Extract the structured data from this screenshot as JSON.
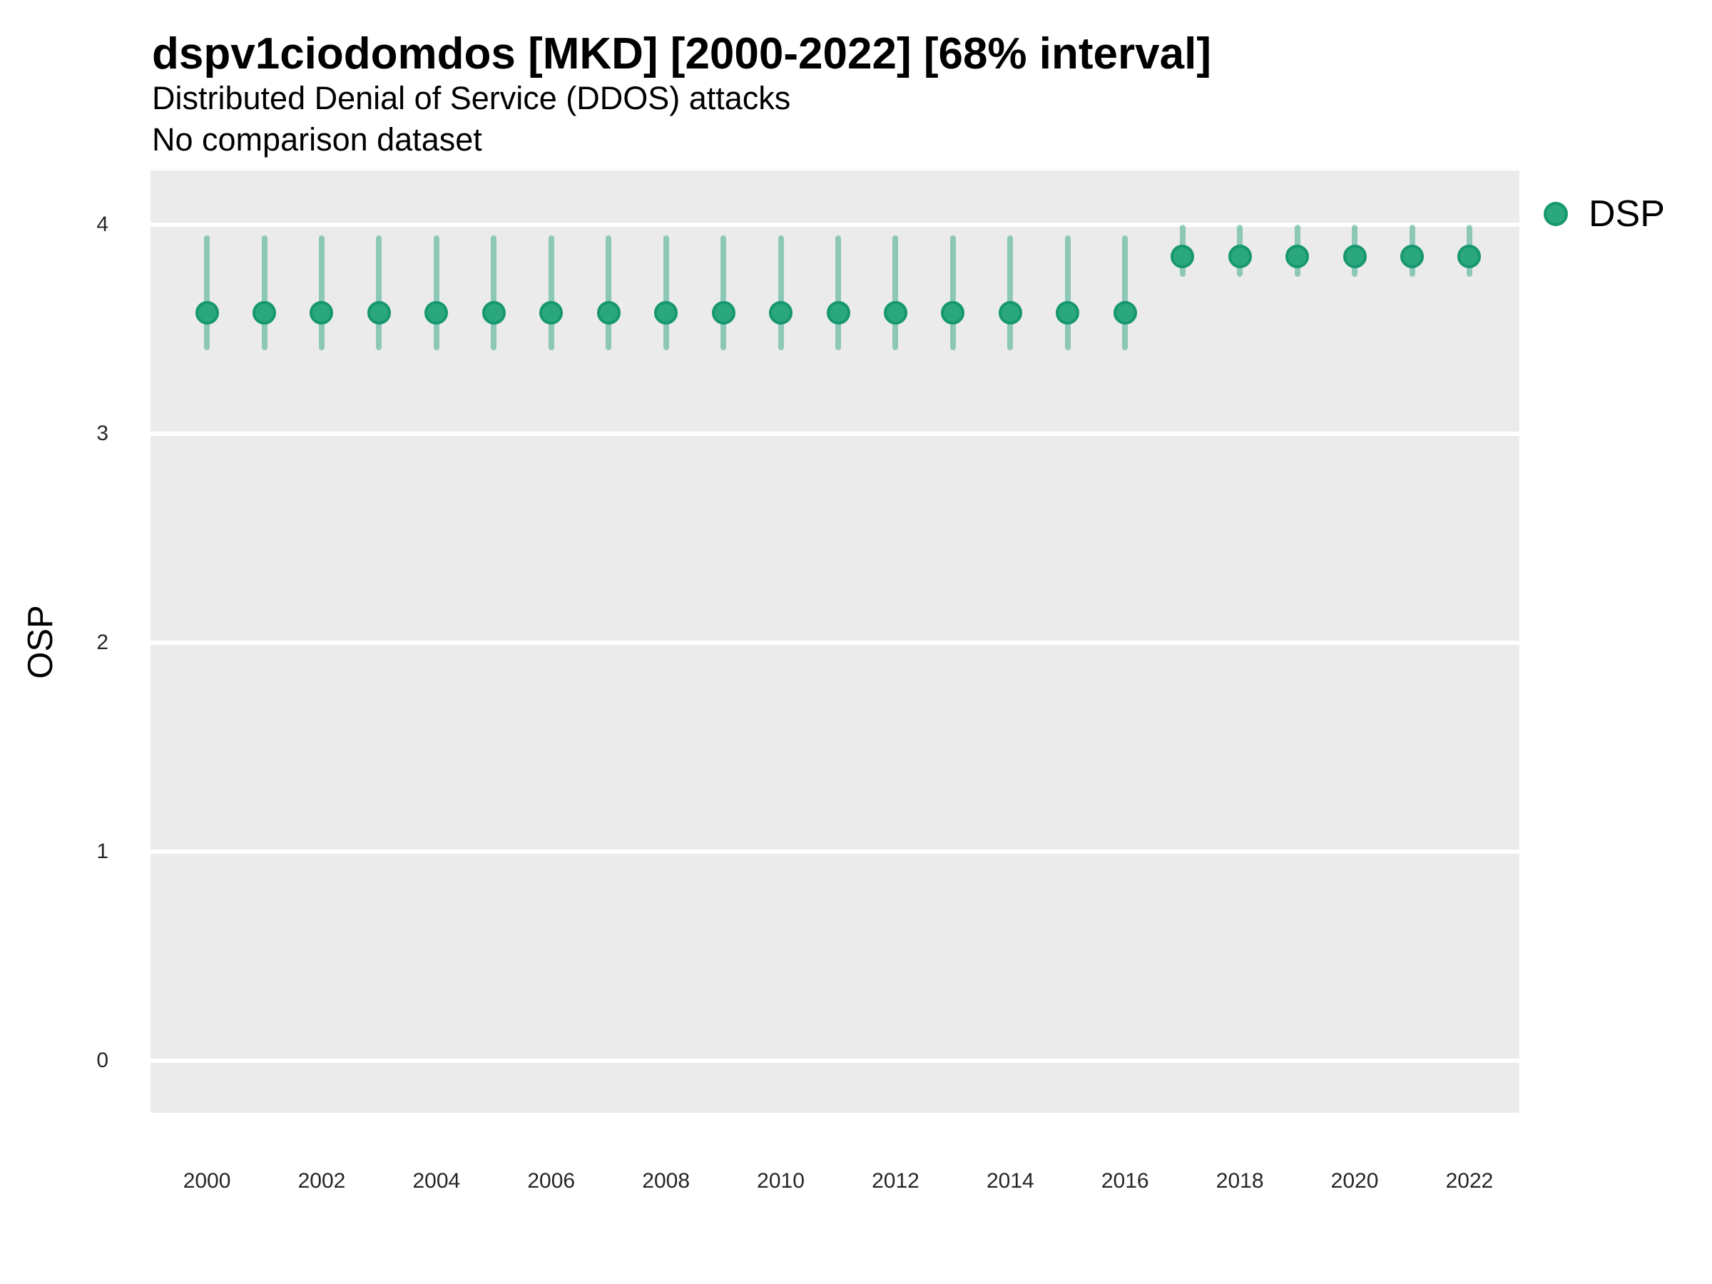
{
  "chart": {
    "title": "dspv1ciodomdos [MKD] [2000-2022] [68% interval]",
    "subtitle": "Distributed Denial of Service (DDOS) attacks",
    "subtitle2": "No comparison dataset",
    "y_axis_title": "OSP",
    "legend": {
      "label": "DSP"
    }
  },
  "chart_data": {
    "type": "scatter",
    "subtype": "pointrange-interval",
    "title": "dspv1ciodomdos [MKD] [2000-2022] [68% interval]",
    "subtitle": "Distributed Denial of Service (DDOS) attacks",
    "comparison_note": "No comparison dataset",
    "interval": "68%",
    "xlabel": "",
    "ylabel": "OSP",
    "x": [
      2000,
      2001,
      2002,
      2003,
      2004,
      2005,
      2006,
      2007,
      2008,
      2009,
      2010,
      2011,
      2012,
      2013,
      2014,
      2015,
      2016,
      2017,
      2018,
      2019,
      2020,
      2021,
      2022
    ],
    "series": [
      {
        "name": "DSP",
        "values": [
          3.58,
          3.58,
          3.58,
          3.58,
          3.58,
          3.58,
          3.58,
          3.58,
          3.58,
          3.58,
          3.58,
          3.58,
          3.58,
          3.58,
          3.58,
          3.58,
          3.58,
          3.85,
          3.85,
          3.85,
          3.85,
          3.85,
          3.85
        ],
        "lower": [
          3.4,
          3.4,
          3.4,
          3.4,
          3.4,
          3.4,
          3.4,
          3.4,
          3.4,
          3.4,
          3.4,
          3.4,
          3.4,
          3.4,
          3.4,
          3.4,
          3.4,
          3.75,
          3.75,
          3.75,
          3.75,
          3.75,
          3.75
        ],
        "upper": [
          3.95,
          3.95,
          3.95,
          3.95,
          3.95,
          3.95,
          3.95,
          3.95,
          3.95,
          3.95,
          3.95,
          3.95,
          3.95,
          3.95,
          3.95,
          3.95,
          3.95,
          4.0,
          4.0,
          4.0,
          4.0,
          4.0,
          4.0
        ]
      }
    ],
    "ylim": [
      -0.25,
      4.26
    ],
    "y_ticks": [
      0,
      1,
      2,
      3,
      4
    ],
    "x_ticks": [
      2000,
      2002,
      2004,
      2006,
      2008,
      2010,
      2012,
      2014,
      2016,
      2018,
      2020,
      2022
    ],
    "grid": "major-y only, white lines on gray panel",
    "legend_position": "right-top"
  },
  "colors": {
    "point_fill": "#2ba77e",
    "point_stroke": "#17976f",
    "range_bar": "rgba(27,158,119,0.45)",
    "panel_bg": "#ebebeb",
    "grid": "#ffffff",
    "title_text": "#000000",
    "tick_text": "#262626"
  }
}
